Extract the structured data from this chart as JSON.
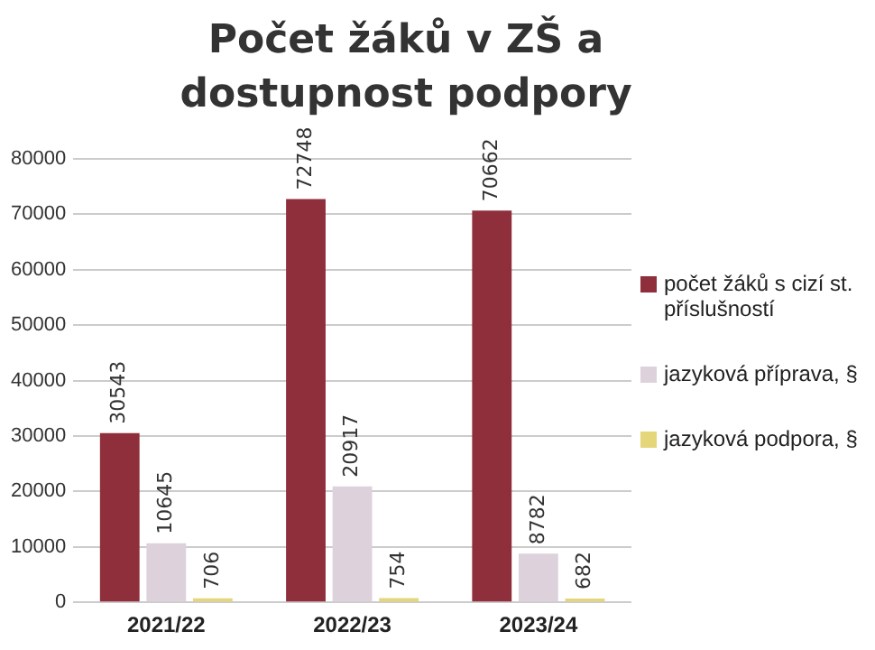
{
  "chart_data": {
    "type": "bar",
    "title": "Počet žáků v ZŠ a dostupnost podpory",
    "categories": [
      "2021/22",
      "2022/23",
      "2023/24"
    ],
    "series": [
      {
        "name": "počet žáků s cizí st. příslušností",
        "color": "#8e2f3b",
        "values": [
          30543,
          72748,
          70662
        ]
      },
      {
        "name": "jazyková příprava, §",
        "color": "#ddd2dc",
        "values": [
          10645,
          20917,
          8782
        ]
      },
      {
        "name": "jazyková podpora, §",
        "color": "#e6d67a",
        "values": [
          706,
          754,
          682
        ]
      }
    ],
    "ylim": [
      0,
      80000
    ],
    "yticks": [
      0,
      10000,
      20000,
      30000,
      40000,
      50000,
      60000,
      70000,
      80000
    ],
    "grid": "y",
    "legend": "right",
    "data_labels": true
  }
}
